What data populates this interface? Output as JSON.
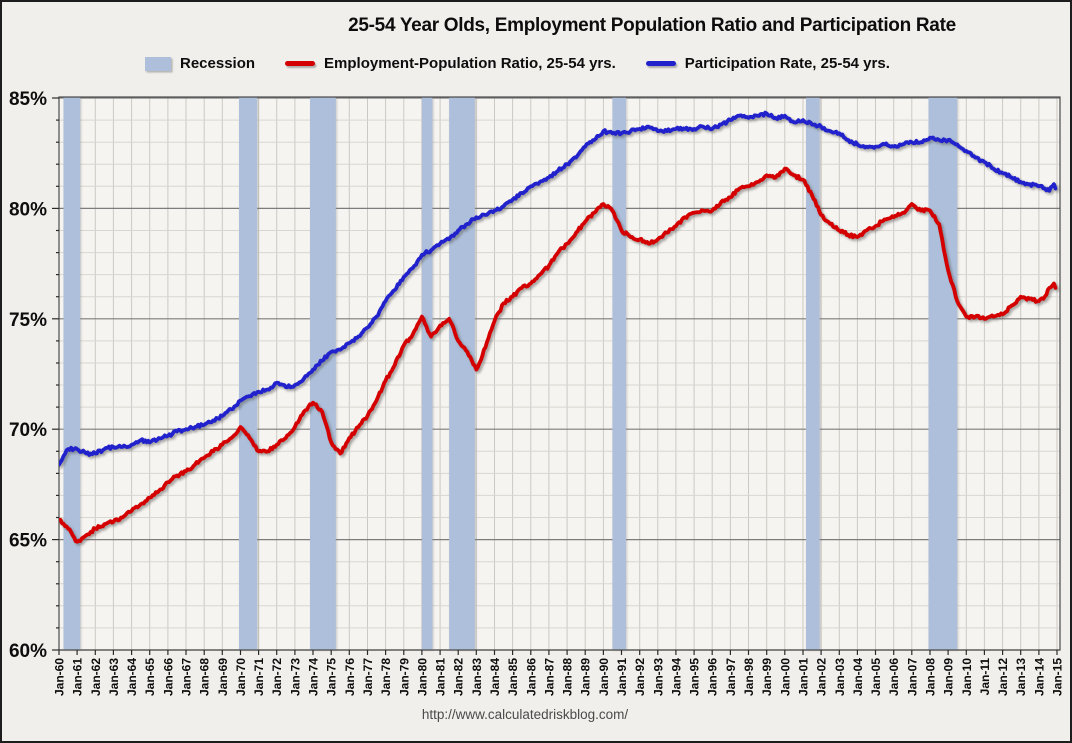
{
  "title": "25-54 Year Olds, Employment Population Ratio and Participation Rate",
  "footer": {
    "url": "http://www.calculatedriskblog.com/"
  },
  "legend": {
    "items": [
      {
        "label": "Recession",
        "type": "band",
        "color": "#adbfda"
      },
      {
        "label": "Employment-Population Ratio, 25-54 yrs.",
        "type": "line",
        "color": "#d40000"
      },
      {
        "label": "Participation Rate, 25-54 yrs.",
        "type": "line",
        "color": "#2222cc"
      }
    ]
  },
  "chart_data": {
    "type": "line",
    "title": "25-54 Year Olds, Employment Population Ratio and Participation Rate",
    "xlabel": "",
    "ylabel": "",
    "xlim": [
      1960,
      2015
    ],
    "ylim": [
      60,
      85
    ],
    "y_major_step": 5,
    "y_minor_step": 1,
    "grid": true,
    "legend_position": "top",
    "y_tick_labels": [
      "60%",
      "65%",
      "70%",
      "75%",
      "80%",
      "85%"
    ],
    "x_tick_labels": [
      "Jan-60",
      "Jan-61",
      "Jan-62",
      "Jan-63",
      "Jan-64",
      "Jan-65",
      "Jan-66",
      "Jan-67",
      "Jan-68",
      "Jan-69",
      "Jan-70",
      "Jan-71",
      "Jan-72",
      "Jan-73",
      "Jan-74",
      "Jan-75",
      "Jan-76",
      "Jan-77",
      "Jan-78",
      "Jan-79",
      "Jan-80",
      "Jan-81",
      "Jan-82",
      "Jan-83",
      "Jan-84",
      "Jan-85",
      "Jan-86",
      "Jan-87",
      "Jan-88",
      "Jan-89",
      "Jan-90",
      "Jan-91",
      "Jan-92",
      "Jan-93",
      "Jan-94",
      "Jan-95",
      "Jan-96",
      "Jan-97",
      "Jan-98",
      "Jan-99",
      "Jan-00",
      "Jan-01",
      "Jan-02",
      "Jan-03",
      "Jan-04",
      "Jan-05",
      "Jan-06",
      "Jan-07",
      "Jan-08",
      "Jan-09",
      "Jan-10",
      "Jan-11",
      "Jan-12",
      "Jan-13",
      "Jan-14",
      "Jan-15"
    ],
    "band_color": "#adbfda",
    "recession_bands": [
      [
        1960.25,
        1961.17
      ],
      [
        1969.92,
        1970.92
      ],
      [
        1973.83,
        1975.25
      ],
      [
        1980.0,
        1980.58
      ],
      [
        1981.5,
        1982.92
      ],
      [
        1990.5,
        1991.25
      ],
      [
        2001.17,
        2001.92
      ],
      [
        2007.92,
        2009.5
      ]
    ],
    "wiggle": 0.07,
    "x": [
      1960,
      1960.5,
      1961,
      1961.5,
      1962,
      1962.5,
      1963,
      1963.5,
      1964,
      1964.5,
      1965,
      1965.5,
      1966,
      1966.5,
      1967,
      1967.5,
      1968,
      1968.5,
      1969,
      1969.5,
      1970,
      1970.5,
      1971,
      1971.5,
      1972,
      1972.5,
      1973,
      1973.5,
      1974,
      1974.5,
      1975,
      1975.5,
      1976,
      1976.5,
      1977,
      1977.5,
      1978,
      1978.5,
      1979,
      1979.5,
      1980,
      1980.5,
      1981,
      1981.5,
      1982,
      1982.5,
      1983,
      1983.5,
      1984,
      1984.5,
      1985,
      1985.5,
      1986,
      1986.5,
      1987,
      1987.5,
      1988,
      1988.5,
      1989,
      1989.5,
      1990,
      1990.5,
      1991,
      1991.5,
      1992,
      1992.5,
      1993,
      1993.5,
      1994,
      1994.5,
      1995,
      1995.5,
      1996,
      1996.5,
      1997,
      1997.5,
      1998,
      1998.5,
      1999,
      1999.5,
      2000,
      2000.5,
      2001,
      2001.5,
      2002,
      2002.5,
      2003,
      2003.5,
      2004,
      2004.5,
      2005,
      2005.5,
      2006,
      2006.5,
      2007,
      2007.5,
      2008,
      2008.5,
      2009,
      2009.5,
      2010,
      2010.5,
      2011,
      2011.5,
      2012,
      2012.5,
      2013,
      2013.5,
      2014,
      2014.33,
      2014.58,
      2014.83,
      2014.92
    ],
    "series": [
      {
        "name": "Employment-Population Ratio, 25-54 yrs.",
        "color": "#d40000",
        "values": [
          65.9,
          65.5,
          64.9,
          65.2,
          65.5,
          65.7,
          65.8,
          66.0,
          66.3,
          66.6,
          66.9,
          67.2,
          67.6,
          67.9,
          68.1,
          68.4,
          68.7,
          69.0,
          69.3,
          69.6,
          70.1,
          69.6,
          69.0,
          69.0,
          69.3,
          69.6,
          70.1,
          70.8,
          71.2,
          70.8,
          69.4,
          68.9,
          69.6,
          70.1,
          70.6,
          71.3,
          72.2,
          72.9,
          73.8,
          74.3,
          75.1,
          74.2,
          74.7,
          75.0,
          74.0,
          73.5,
          72.7,
          73.7,
          74.9,
          75.7,
          76.0,
          76.4,
          76.6,
          77.0,
          77.4,
          78.0,
          78.4,
          78.9,
          79.4,
          79.8,
          80.2,
          79.9,
          79.0,
          78.7,
          78.6,
          78.4,
          78.6,
          78.9,
          79.2,
          79.6,
          79.8,
          79.9,
          79.9,
          80.3,
          80.5,
          80.9,
          81.0,
          81.2,
          81.5,
          81.4,
          81.8,
          81.5,
          81.3,
          80.6,
          79.7,
          79.3,
          79.0,
          78.8,
          78.7,
          79.0,
          79.2,
          79.5,
          79.6,
          79.8,
          80.2,
          79.9,
          79.9,
          79.3,
          77.2,
          75.8,
          75.1,
          75.1,
          75.0,
          75.1,
          75.2,
          75.6,
          76.0,
          75.9,
          75.8,
          76.0,
          76.4,
          76.6,
          76.4
        ]
      },
      {
        "name": "Participation Rate, 25-54 yrs.",
        "color": "#2222cc",
        "values": [
          68.4,
          69.1,
          69.1,
          68.9,
          68.9,
          69.1,
          69.2,
          69.2,
          69.3,
          69.5,
          69.4,
          69.6,
          69.7,
          69.9,
          70.0,
          70.1,
          70.2,
          70.4,
          70.6,
          70.9,
          71.3,
          71.5,
          71.7,
          71.8,
          72.1,
          71.9,
          72.0,
          72.3,
          72.7,
          73.1,
          73.5,
          73.6,
          73.9,
          74.2,
          74.6,
          75.1,
          75.8,
          76.3,
          76.9,
          77.3,
          77.9,
          78.1,
          78.4,
          78.6,
          79.0,
          79.3,
          79.6,
          79.7,
          79.9,
          80.1,
          80.4,
          80.7,
          81.0,
          81.2,
          81.4,
          81.7,
          82.0,
          82.3,
          82.8,
          83.1,
          83.5,
          83.4,
          83.4,
          83.5,
          83.6,
          83.7,
          83.5,
          83.5,
          83.6,
          83.6,
          83.6,
          83.7,
          83.6,
          83.8,
          84.0,
          84.2,
          84.1,
          84.2,
          84.3,
          84.1,
          84.2,
          83.9,
          84.0,
          83.8,
          83.7,
          83.5,
          83.4,
          83.1,
          82.9,
          82.8,
          82.8,
          82.9,
          82.8,
          82.9,
          83.0,
          83.0,
          83.2,
          83.1,
          83.1,
          82.9,
          82.6,
          82.3,
          82.1,
          81.8,
          81.6,
          81.4,
          81.2,
          81.1,
          81.0,
          80.9,
          80.8,
          81.1,
          80.9
        ]
      }
    ]
  }
}
